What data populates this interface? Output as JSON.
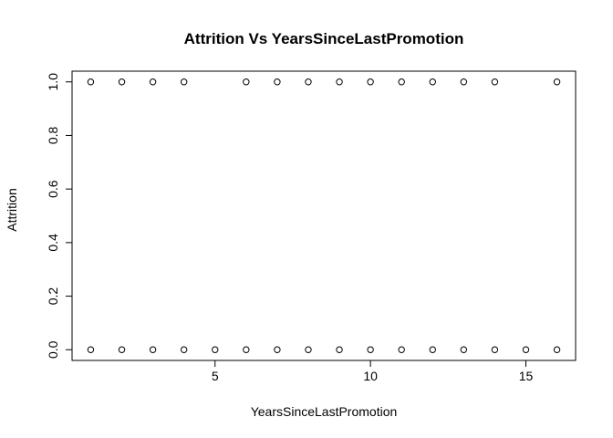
{
  "chart_data": {
    "type": "scatter",
    "title": "Attrition Vs YearsSinceLastPromotion",
    "xlabel": "YearsSinceLastPromotion",
    "ylabel": "Attrition",
    "xlim": [
      0.4,
      16.6
    ],
    "ylim": [
      -0.04,
      1.04
    ],
    "x_ticks": [
      5,
      10,
      15
    ],
    "x_tick_labels": [
      "5",
      "10",
      "15"
    ],
    "y_ticks": [
      0.0,
      0.2,
      0.4,
      0.6,
      0.8,
      1.0
    ],
    "y_tick_labels": [
      "0.0",
      "0.2",
      "0.4",
      "0.6",
      "0.8",
      "1.0"
    ],
    "grid": false,
    "points": [
      {
        "x": 1,
        "y": 1
      },
      {
        "x": 2,
        "y": 1
      },
      {
        "x": 3,
        "y": 1
      },
      {
        "x": 4,
        "y": 1
      },
      {
        "x": 6,
        "y": 1
      },
      {
        "x": 7,
        "y": 1
      },
      {
        "x": 8,
        "y": 1
      },
      {
        "x": 9,
        "y": 1
      },
      {
        "x": 10,
        "y": 1
      },
      {
        "x": 11,
        "y": 1
      },
      {
        "x": 12,
        "y": 1
      },
      {
        "x": 13,
        "y": 1
      },
      {
        "x": 14,
        "y": 1
      },
      {
        "x": 16,
        "y": 1
      },
      {
        "x": 1,
        "y": 0
      },
      {
        "x": 2,
        "y": 0
      },
      {
        "x": 3,
        "y": 0
      },
      {
        "x": 4,
        "y": 0
      },
      {
        "x": 5,
        "y": 0
      },
      {
        "x": 6,
        "y": 0
      },
      {
        "x": 7,
        "y": 0
      },
      {
        "x": 8,
        "y": 0
      },
      {
        "x": 9,
        "y": 0
      },
      {
        "x": 10,
        "y": 0
      },
      {
        "x": 11,
        "y": 0
      },
      {
        "x": 12,
        "y": 0
      },
      {
        "x": 13,
        "y": 0
      },
      {
        "x": 14,
        "y": 0
      },
      {
        "x": 15,
        "y": 0
      },
      {
        "x": 16,
        "y": 0
      }
    ]
  }
}
